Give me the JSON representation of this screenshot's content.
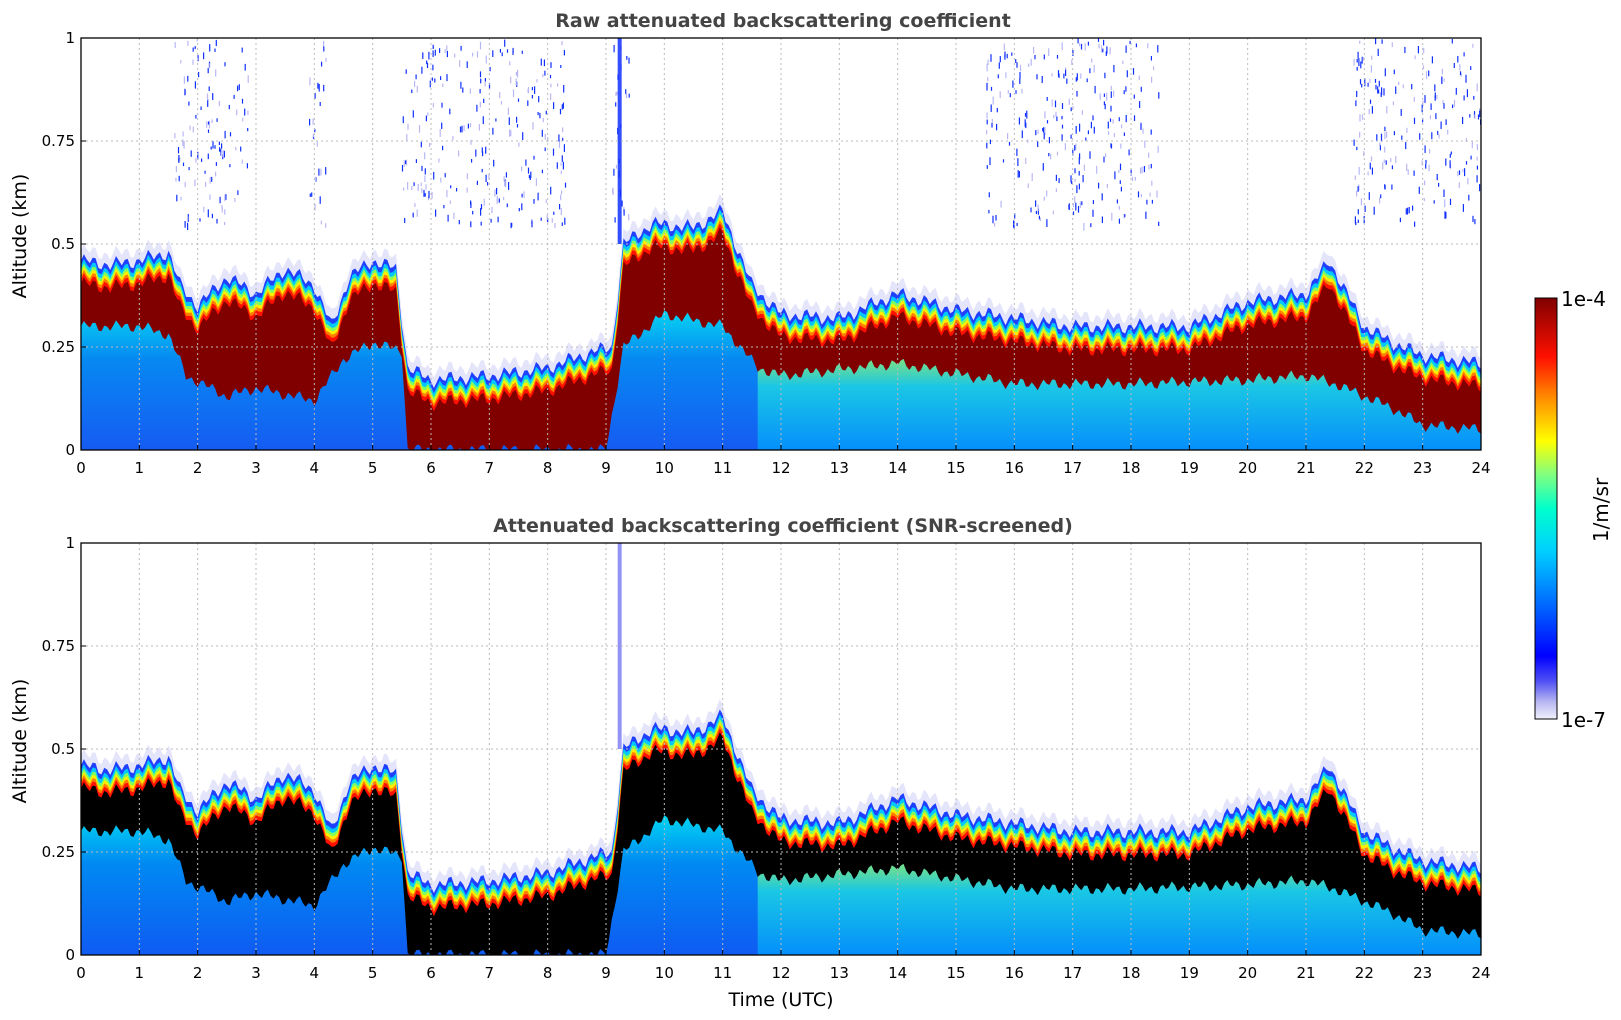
{
  "chart_data": [
    {
      "type": "heatmap",
      "title": "Raw attenuated backscattering coefficient",
      "ylabel": "Altitude (km)",
      "xlabel": "",
      "xlim": [
        0,
        24
      ],
      "ylim": [
        0,
        1
      ],
      "x_ticks": [
        "0",
        "1",
        "2",
        "3",
        "4",
        "5",
        "6",
        "7",
        "8",
        "9",
        "10",
        "11",
        "12",
        "13",
        "14",
        "15",
        "16",
        "17",
        "18",
        "19",
        "20",
        "21",
        "22",
        "23",
        "24"
      ],
      "y_ticks": [
        "0",
        "0.25",
        "0.5",
        "0.75",
        "1"
      ],
      "grid": true,
      "high_signal_color": "#800000",
      "cloud_top_km": {
        "time_utc": [
          0,
          0.5,
          1,
          1.5,
          1.7,
          2,
          2.5,
          3,
          3.5,
          4,
          4.3,
          4.6,
          5,
          5.4,
          5.6,
          6,
          7,
          8,
          8.8,
          9.1,
          9.3,
          9.8,
          10.5,
          11,
          11.5,
          12,
          13,
          14,
          15,
          16,
          17,
          18,
          19,
          20,
          21,
          21.4,
          22,
          22.5,
          23,
          24
        ],
        "altitude": [
          0.46,
          0.45,
          0.46,
          0.48,
          0.4,
          0.35,
          0.42,
          0.38,
          0.44,
          0.4,
          0.3,
          0.42,
          0.46,
          0.44,
          0.2,
          0.17,
          0.18,
          0.2,
          0.24,
          0.25,
          0.5,
          0.55,
          0.54,
          0.58,
          0.4,
          0.33,
          0.32,
          0.38,
          0.34,
          0.32,
          0.3,
          0.3,
          0.3,
          0.36,
          0.38,
          0.46,
          0.3,
          0.26,
          0.23,
          0.21
        ]
      },
      "strong_layer_base_km": {
        "time_utc": [
          0,
          1,
          1.5,
          1.8,
          2.5,
          3,
          4,
          4.5,
          5,
          5.5,
          5.6,
          6,
          7,
          8,
          9,
          9.3,
          10,
          11,
          11.6,
          12,
          14,
          16,
          18,
          20,
          21,
          21.5,
          22.5,
          23,
          24
        ],
        "altitude": [
          0.3,
          0.3,
          0.28,
          0.18,
          0.13,
          0.15,
          0.12,
          0.22,
          0.26,
          0.24,
          0,
          0,
          0,
          0,
          0,
          0.25,
          0.33,
          0.3,
          0.2,
          0.18,
          0.21,
          0.16,
          0.16,
          0.17,
          0.18,
          0.16,
          0.1,
          0.06,
          0.05
        ]
      }
    },
    {
      "type": "heatmap",
      "title": "Attenuated backscattering coefficient (SNR-screened)",
      "ylabel": "Altitude (km)",
      "xlabel": "Time (UTC)",
      "xlim": [
        0,
        24
      ],
      "ylim": [
        0,
        1
      ],
      "x_ticks": [
        "0",
        "1",
        "2",
        "3",
        "4",
        "5",
        "6",
        "7",
        "8",
        "9",
        "10",
        "11",
        "12",
        "13",
        "14",
        "15",
        "16",
        "17",
        "18",
        "19",
        "20",
        "21",
        "22",
        "23",
        "24"
      ],
      "y_ticks": [
        "0",
        "0.25",
        "0.5",
        "0.75",
        "1"
      ],
      "grid": true,
      "high_signal_color": "#000000"
    }
  ],
  "colorbar": {
    "label": "1/m/sr",
    "max_label": "1e-4",
    "min_label": "1e-7",
    "colors": [
      "#e8e8fa",
      "#c8c8f5",
      "#9090f0",
      "#4a4af5",
      "#0000ff",
      "#0040ff",
      "#0080ff",
      "#00c0ff",
      "#00ffff",
      "#40ffc0",
      "#80ff80",
      "#c0ff40",
      "#ffff00",
      "#ffc000",
      "#ff8000",
      "#ff4000",
      "#ff0000",
      "#c00000",
      "#800000"
    ]
  }
}
